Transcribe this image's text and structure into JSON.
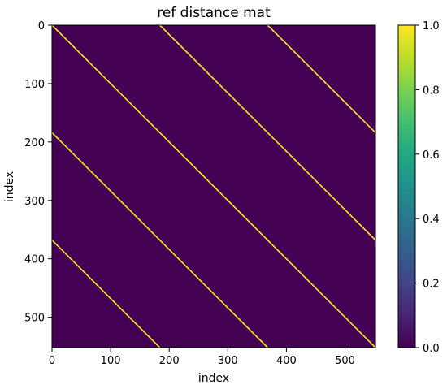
{
  "chart_data": {
    "type": "heatmap",
    "title": "ref distance mat",
    "xlabel": "index",
    "ylabel": "index",
    "xlim": [
      0,
      552
    ],
    "ylim": [
      552,
      0
    ],
    "x_ticks": [
      0,
      100,
      200,
      300,
      400,
      500
    ],
    "y_ticks": [
      0,
      100,
      200,
      300,
      400,
      500
    ],
    "background_value": 0.0,
    "line_value": 1.0,
    "diagonal_lines": [
      {
        "start": [
          0,
          0
        ],
        "end": [
          552,
          552
        ]
      },
      {
        "start": [
          184,
          0
        ],
        "end": [
          552,
          368
        ]
      },
      {
        "start": [
          368,
          0
        ],
        "end": [
          552,
          184
        ]
      },
      {
        "start": [
          0,
          184
        ],
        "end": [
          368,
          552
        ]
      },
      {
        "start": [
          0,
          368
        ],
        "end": [
          184,
          552
        ]
      }
    ],
    "colorbar": {
      "colormap": "viridis",
      "range": [
        0.0,
        1.0
      ],
      "ticks": [
        "0.0",
        "0.2",
        "0.4",
        "0.6",
        "0.8",
        "1.0"
      ]
    },
    "colors": {
      "low": "#440154",
      "high": "#fde725"
    }
  }
}
